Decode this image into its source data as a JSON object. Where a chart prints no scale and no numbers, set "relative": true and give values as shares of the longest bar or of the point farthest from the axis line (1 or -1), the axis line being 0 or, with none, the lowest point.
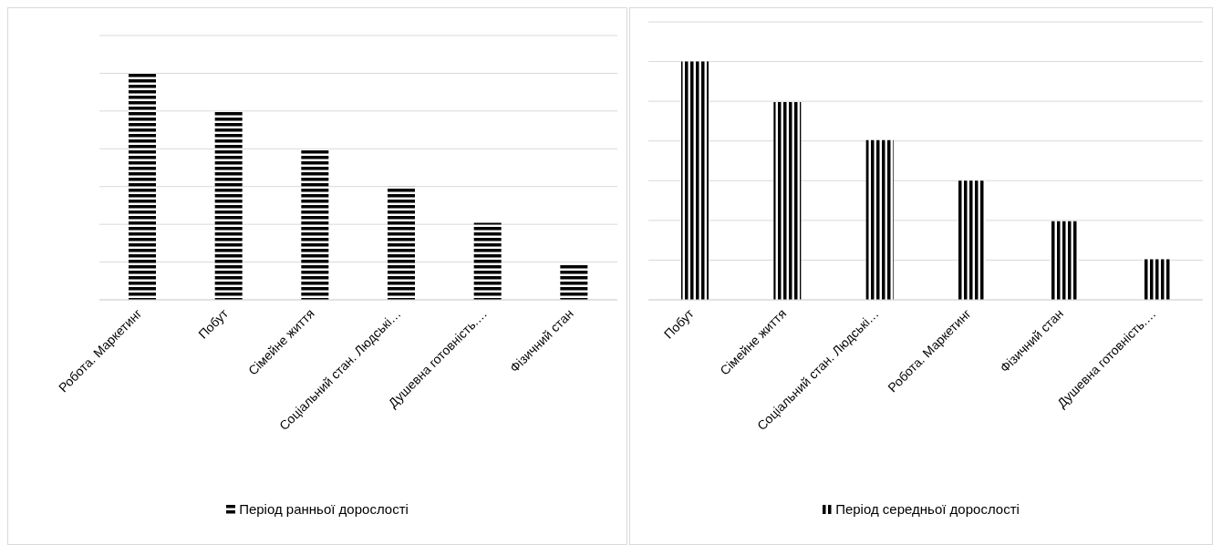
{
  "chart_data": [
    {
      "type": "bar",
      "relative": true,
      "grid": "y",
      "legend": "bottom",
      "categories": [
        "Робота. Маркетинг",
        "Побут",
        "Сімейне життя",
        "Соціальний стан. Людські…",
        "Душевна готовність.…",
        "Фізичний стан"
      ],
      "series": [
        {
          "name": "Період ранньої дорослості",
          "color": "#000000",
          "values": [
            1,
            0.83,
            0.66,
            0.5,
            0.34,
            0.16
          ]
        }
      ]
    },
    {
      "type": "bar",
      "relative": true,
      "grid": "y",
      "legend": "bottom",
      "categories": [
        "Побут",
        "Сімейне життя",
        "Соціальний стан. Людські…",
        "Робота. Маркетинг",
        "Фізичний стан",
        "Душевна готовність.…"
      ],
      "series": [
        {
          "name": "Період середньої дорослості",
          "color": "#000000",
          "values": [
            1,
            0.83,
            0.67,
            0.5,
            0.33,
            0.17
          ]
        }
      ]
    }
  ]
}
